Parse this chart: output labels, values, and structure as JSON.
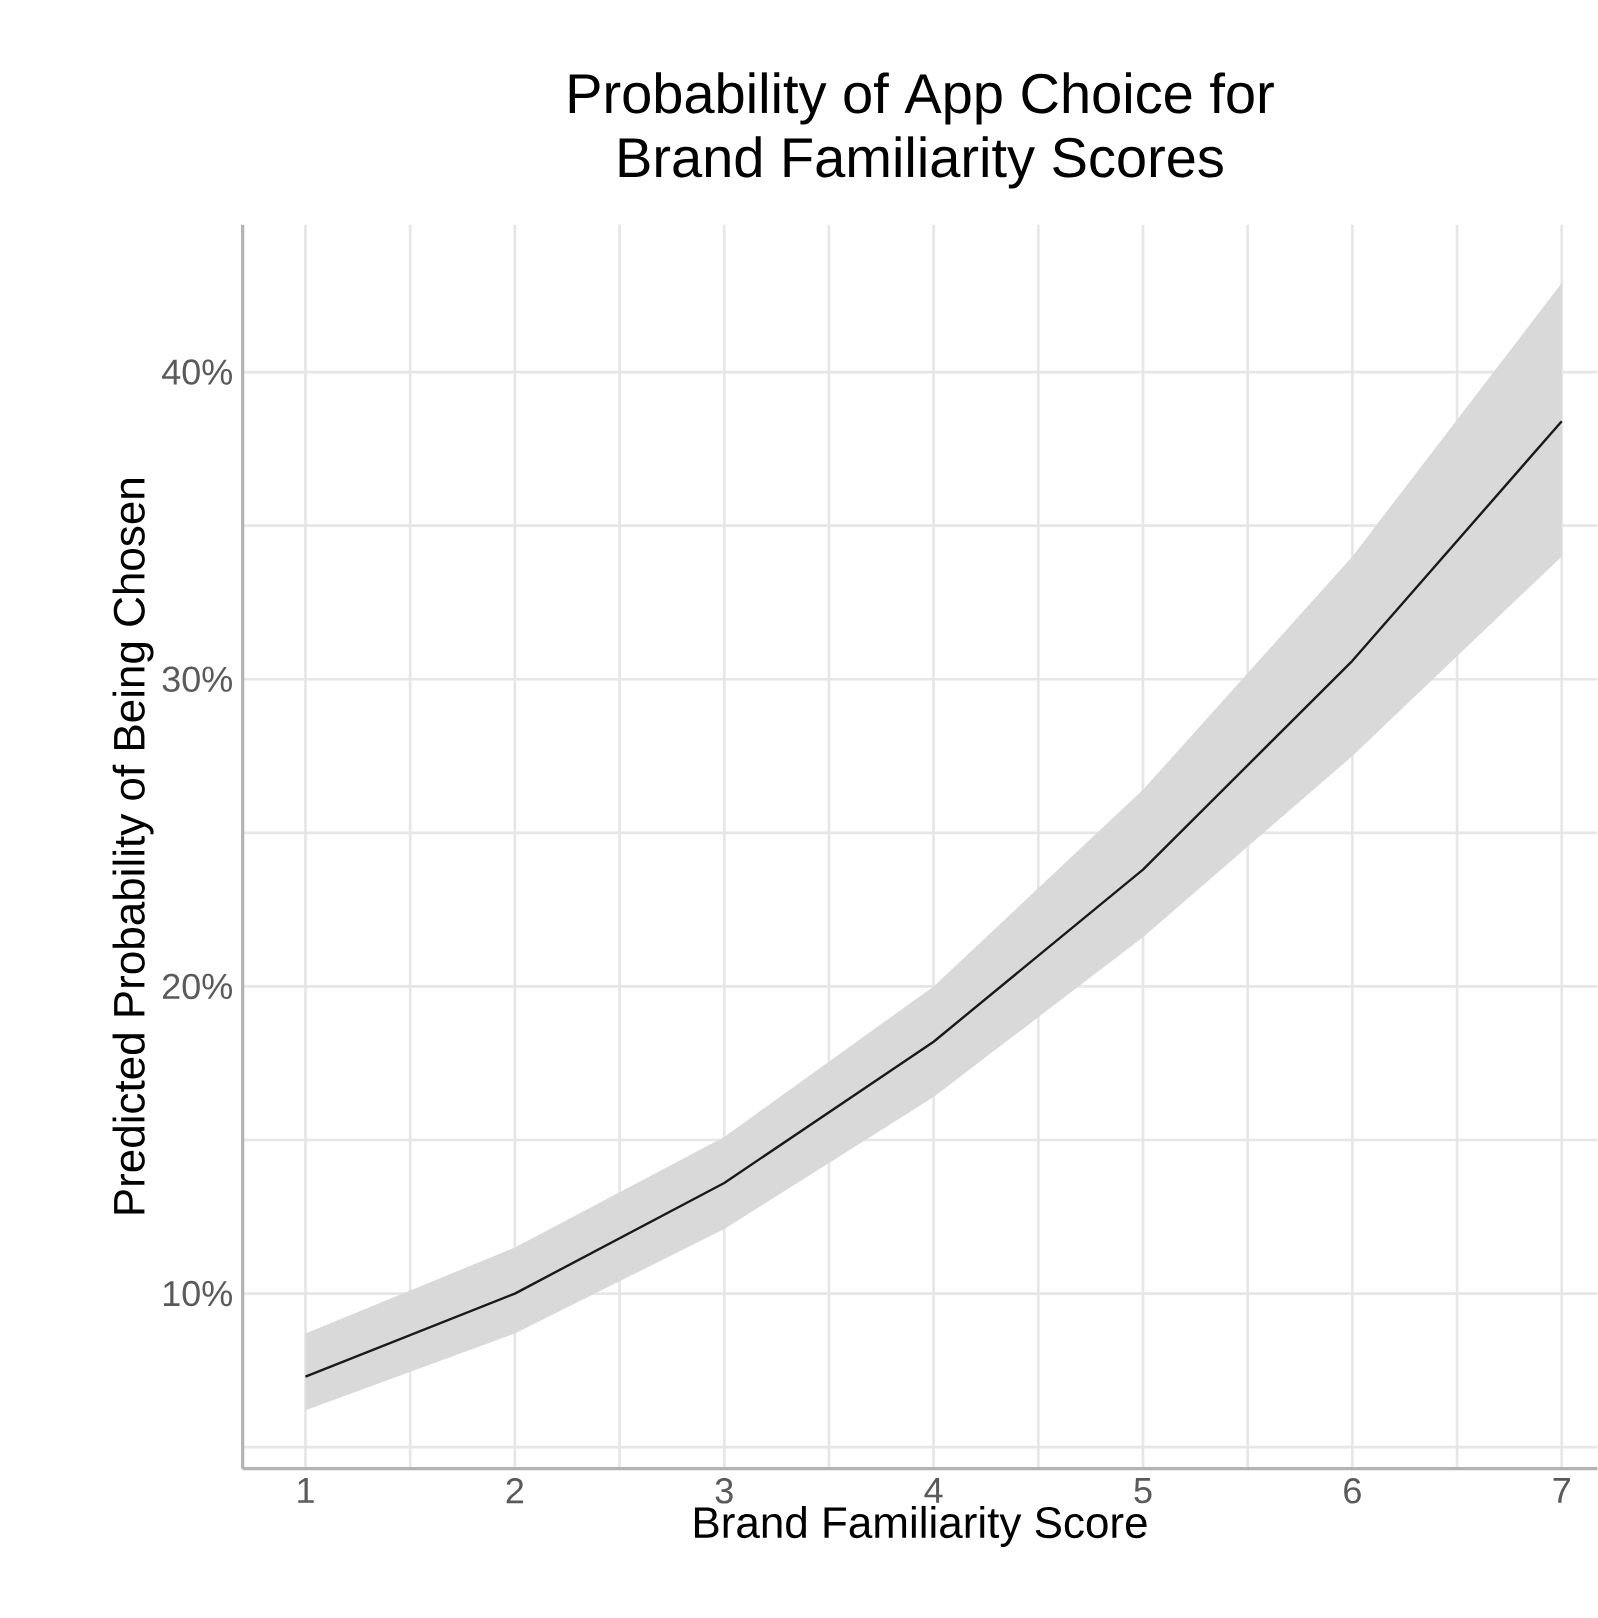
{
  "chart_data": {
    "type": "line",
    "title": "Probability of App Choice for\nBrand Familiarity Scores",
    "xlabel": "Brand Familiarity Score",
    "ylabel": "Predicted Probability of Being Chosen",
    "x": [
      1,
      2,
      3,
      4,
      5,
      6,
      7
    ],
    "series": [
      {
        "color": "#1a1a1a",
        "values": [
          7.3,
          10.0,
          13.6,
          18.2,
          23.8,
          30.6,
          38.4
        ],
        "lower": [
          6.2,
          8.7,
          12.1,
          16.4,
          21.6,
          27.5,
          34.0
        ],
        "upper": [
          8.7,
          11.5,
          15.1,
          20.0,
          26.4,
          34.0,
          42.9
        ]
      }
    ],
    "xlim": [
      0.7,
      7.17
    ],
    "ylim": [
      4.3,
      44.8
    ],
    "xticks": [
      1,
      {
        "value": 1.5,
        "label": null
      },
      2,
      {
        "value": 2.5,
        "label": null
      },
      3,
      {
        "value": 3.5,
        "label": null
      },
      4,
      {
        "value": 4.5,
        "label": null
      },
      5,
      {
        "value": 5.5,
        "label": null
      },
      6,
      {
        "value": 6.5,
        "label": null
      },
      7
    ],
    "yticks": [
      {
        "value": 5,
        "label": null
      },
      {
        "value": 10,
        "label": "10%"
      },
      {
        "value": 15,
        "label": null
      },
      {
        "value": 20,
        "label": "20%"
      },
      {
        "value": 25,
        "label": null
      },
      {
        "value": 30,
        "label": "30%"
      },
      {
        "value": 35,
        "label": null
      },
      {
        "value": 40,
        "label": "40%"
      }
    ],
    "grid": true,
    "marker": "none",
    "line_style": "solid"
  }
}
